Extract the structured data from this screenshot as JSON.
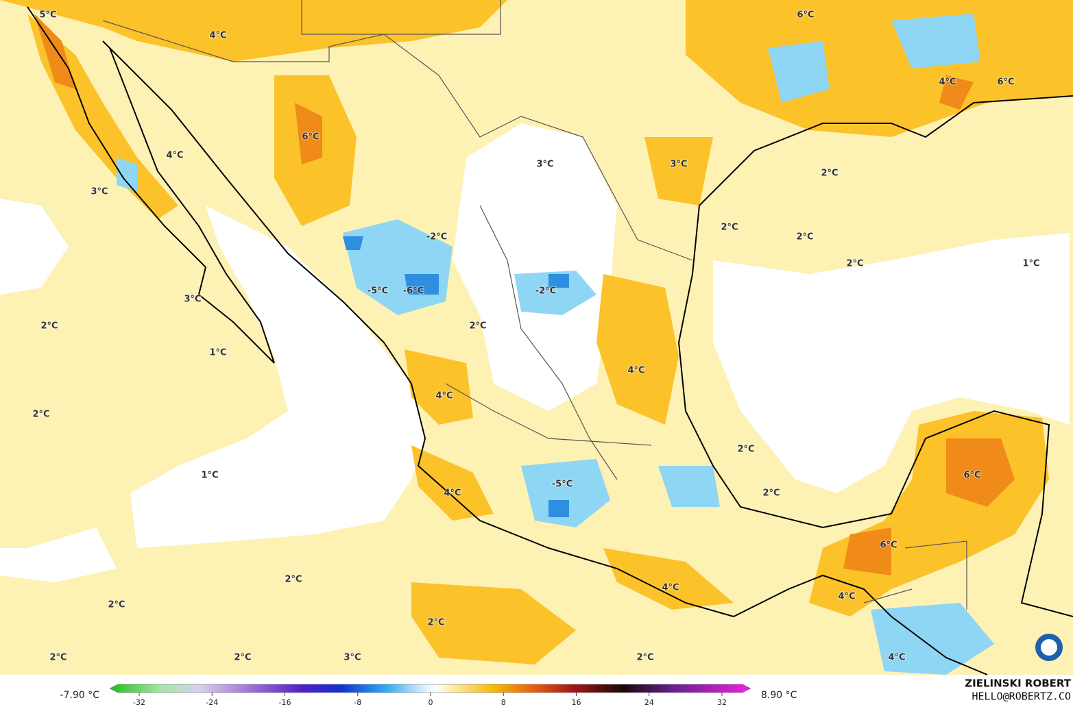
{
  "map": {
    "labels": [
      "5°C",
      "4°C",
      "6°C",
      "4°C",
      "6°C",
      "6°C",
      "4°C",
      "3°C",
      "3°C",
      "3°C",
      "2°C",
      "2°C",
      "2°C",
      "-2°C",
      "2°C",
      "1°C",
      "-5°C",
      "-6°C",
      "-2°C",
      "3°C",
      "2°C",
      "2°C",
      "1°C",
      "4°C",
      "4°C",
      "2°C",
      "2°C",
      "1°C",
      "6°C",
      "-5°C",
      "4°C",
      "2°C",
      "6°C",
      "2°C",
      "4°C",
      "4°C",
      "2°C",
      "2°C",
      "2°C",
      "2°C",
      "3°C",
      "2°C",
      "4°C"
    ]
  },
  "colorbar": {
    "min_label": "-7.90 °C",
    "max_label": "8.90 °C",
    "ticks": [
      -32,
      -24,
      -16,
      -8,
      0,
      8,
      16,
      24,
      32
    ]
  },
  "credit": {
    "name": "ZIELINSKI ROBERT",
    "email": "HELLO@ROBERTZ.CO"
  }
}
